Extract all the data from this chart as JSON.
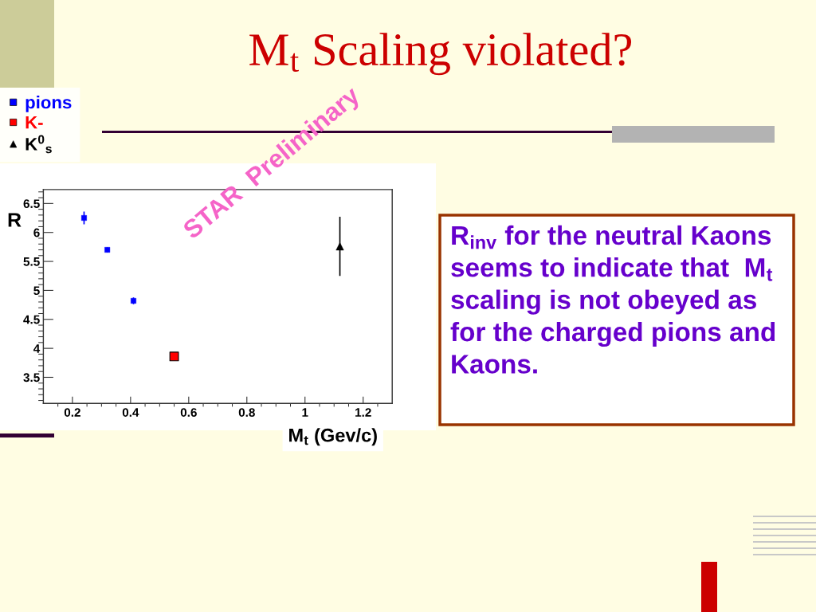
{
  "chart_data": {
    "type": "scatter",
    "title": "M$_{t}$ Scaling violated?",
    "xlabel": "M$_{t}$ (Gev/c)",
    "ylabel": "R",
    "series": [
      {
        "name": "pions",
        "color": "#0000ff",
        "marker": "square",
        "x": [
          0.24,
          0.32,
          0.41
        ],
        "values": [
          6.25,
          5.7,
          4.82
        ],
        "errors": [
          0.11,
          0.04,
          0.06
        ]
      },
      {
        "name": "K-",
        "color": "#ff0000",
        "marker": "square",
        "x": [
          0.55
        ],
        "values": [
          3.86
        ]
      },
      {
        "name": "K$^{0}$$_{s}$",
        "color": "#000000",
        "marker": "triangle",
        "x": [
          1.12
        ],
        "values": [
          5.76
        ],
        "errors": [
          0.51
        ]
      }
    ],
    "xlim": [
      0.1,
      1.3
    ],
    "ylim": [
      3.05,
      6.74
    ],
    "xticks": [
      {
        "value": 0.15,
        "label": null
      },
      0.2,
      {
        "value": 0.25,
        "label": null
      },
      {
        "value": 0.3,
        "label": null
      },
      {
        "value": 0.35,
        "label": null
      },
      0.4,
      {
        "value": 0.45,
        "label": null
      },
      {
        "value": 0.5,
        "label": null
      },
      {
        "value": 0.55,
        "label": null
      },
      0.6,
      {
        "value": 0.65,
        "label": null
      },
      {
        "value": 0.7,
        "label": null
      },
      {
        "value": 0.75,
        "label": null
      },
      0.8,
      {
        "value": 0.85,
        "label": null
      },
      {
        "value": 0.9,
        "label": null
      },
      {
        "value": 0.95,
        "label": null
      },
      1,
      {
        "value": 1.05,
        "label": null
      },
      {
        "value": 1.1,
        "label": null
      },
      {
        "value": 1.15,
        "label": null
      },
      1.2,
      {
        "value": 1.25,
        "label": null
      }
    ],
    "yticks": [
      {
        "value": 3.1,
        "label": null
      },
      {
        "value": 3.2,
        "label": null
      },
      {
        "value": 3.3,
        "label": null
      },
      {
        "value": 3.4,
        "label": null
      },
      3.5,
      {
        "value": 3.6,
        "label": null
      },
      {
        "value": 3.7,
        "label": null
      },
      {
        "value": 3.8,
        "label": null
      },
      {
        "value": 3.9,
        "label": null
      },
      4,
      {
        "value": 4.1,
        "label": null
      },
      {
        "value": 4.2,
        "label": null
      },
      {
        "value": 4.3,
        "label": null
      },
      {
        "value": 4.4,
        "label": null
      },
      4.5,
      {
        "value": 4.6,
        "label": null
      },
      {
        "value": 4.7,
        "label": null
      },
      {
        "value": 4.8,
        "label": null
      },
      {
        "value": 4.9,
        "label": null
      },
      5,
      {
        "value": 5.1,
        "label": null
      },
      {
        "value": 5.2,
        "label": null
      },
      {
        "value": 5.3,
        "label": null
      },
      {
        "value": 5.4,
        "label": null
      },
      5.5,
      {
        "value": 5.6,
        "label": null
      },
      {
        "value": 5.7,
        "label": null
      },
      {
        "value": 5.8,
        "label": null
      },
      {
        "value": 5.9,
        "label": null
      },
      6,
      {
        "value": 6.1,
        "label": null
      },
      {
        "value": 6.2,
        "label": null
      },
      {
        "value": 6.3,
        "label": null
      },
      {
        "value": 6.4,
        "label": null
      },
      6.5,
      {
        "value": 6.6,
        "label": null
      },
      {
        "value": 6.7,
        "label": null
      }
    ],
    "legend": "top left",
    "annotations": [
      "STAR  Preliminary",
      "R$_{inv}$ for the neutral Kaons\nseems to indicate that  M$_{t}$\nscaling is not obeyed as\nfor the charged pions and\nKaons."
    ]
  }
}
